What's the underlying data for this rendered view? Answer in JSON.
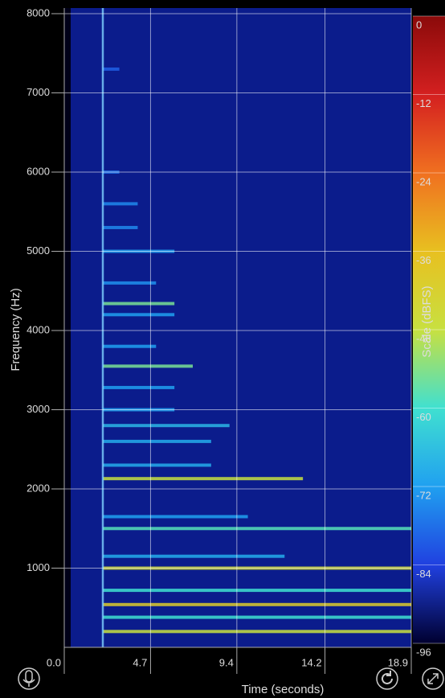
{
  "chart_data": {
    "type": "spectrogram",
    "xlabel": "Time (seconds)",
    "ylabel": "Frequency (Hz)",
    "xlim": [
      0,
      18.9
    ],
    "xticks": [
      {
        "value": 0,
        "label": "0.0"
      },
      4.7,
      9.4,
      14.2,
      18.9
    ],
    "ylim": [
      0,
      8000
    ],
    "yticks": [
      1000,
      2000,
      3000,
      4000,
      5000,
      6000,
      7000,
      8000
    ],
    "grid": true,
    "background": "#0b1c8c",
    "onset": 2.1,
    "partials": {
      "frequency": [
        200,
        380,
        540,
        720,
        1000,
        1150,
        1500,
        1650,
        2130,
        2300,
        2600,
        2800,
        3000,
        3280,
        3550,
        3800,
        4200,
        4340,
        4600,
        5000,
        5300,
        5600,
        6000,
        7300
      ],
      "level": [
        -48,
        -60,
        -40,
        -60,
        -45,
        -70,
        -58,
        -72,
        -48,
        -70,
        -70,
        -68,
        -72,
        -72,
        -55,
        -72,
        -72,
        -55,
        -74,
        -72,
        -75,
        -75,
        -78,
        -80
      ],
      "end": [
        18.9,
        18.9,
        18.9,
        18.9,
        18.9,
        12,
        18.9,
        10,
        13,
        8,
        8,
        9,
        6,
        6,
        7,
        5,
        6,
        6,
        5,
        6,
        4,
        4,
        3,
        3
      ]
    },
    "colorbar": {
      "label": "Scale (dBFS)",
      "lim": [
        0,
        -96
      ],
      "ticks": [
        0,
        -12,
        -24,
        -36,
        -48,
        -60,
        -72,
        -84,
        -96
      ],
      "colors": [
        "#8b0a0a",
        "#d42020",
        "#f07020",
        "#e8c020",
        "#c8e040",
        "#40e0d0",
        "#20a0f0",
        "#2040e0",
        "#000030"
      ]
    }
  }
}
